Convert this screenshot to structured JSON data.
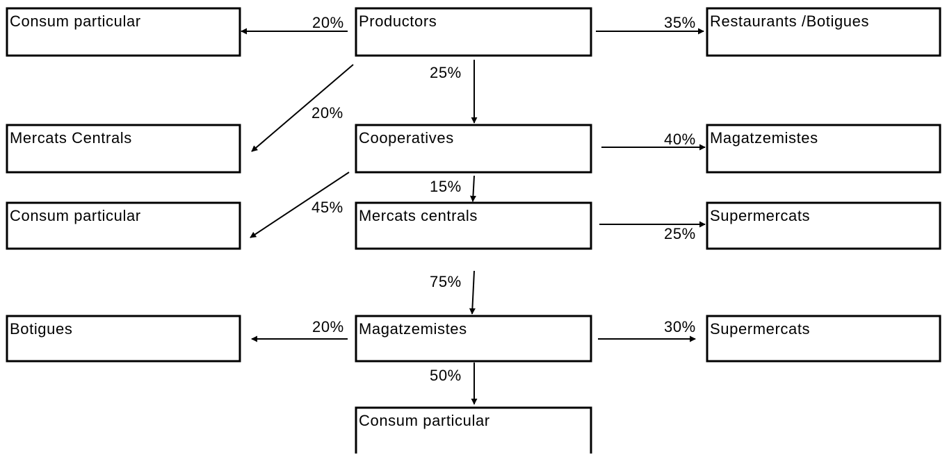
{
  "nodes": [
    {
      "label": "Consum particular"
    },
    {
      "label": "Productors"
    },
    {
      "label": "Restaurants /Botigues"
    },
    {
      "label": "Mercats Centrals"
    },
    {
      "label": "Cooperatives"
    },
    {
      "label": "Magatzemistes"
    },
    {
      "label": "Consum particular"
    },
    {
      "label": "Mercats centrals"
    },
    {
      "label": "Supermercats"
    },
    {
      "label": "Botigues"
    },
    {
      "label": "Magatzemistes"
    },
    {
      "label": "Supermercats"
    },
    {
      "label": "Consum particular"
    }
  ],
  "edges": [
    {
      "label": "20%"
    },
    {
      "label": "35%"
    },
    {
      "label": "25%"
    },
    {
      "label": "20%"
    },
    {
      "label": "40%"
    },
    {
      "label": "45%"
    },
    {
      "label": "15%"
    },
    {
      "label": "25%"
    },
    {
      "label": "75%"
    },
    {
      "label": "20%"
    },
    {
      "label": "30%"
    },
    {
      "label": "50%"
    }
  ]
}
